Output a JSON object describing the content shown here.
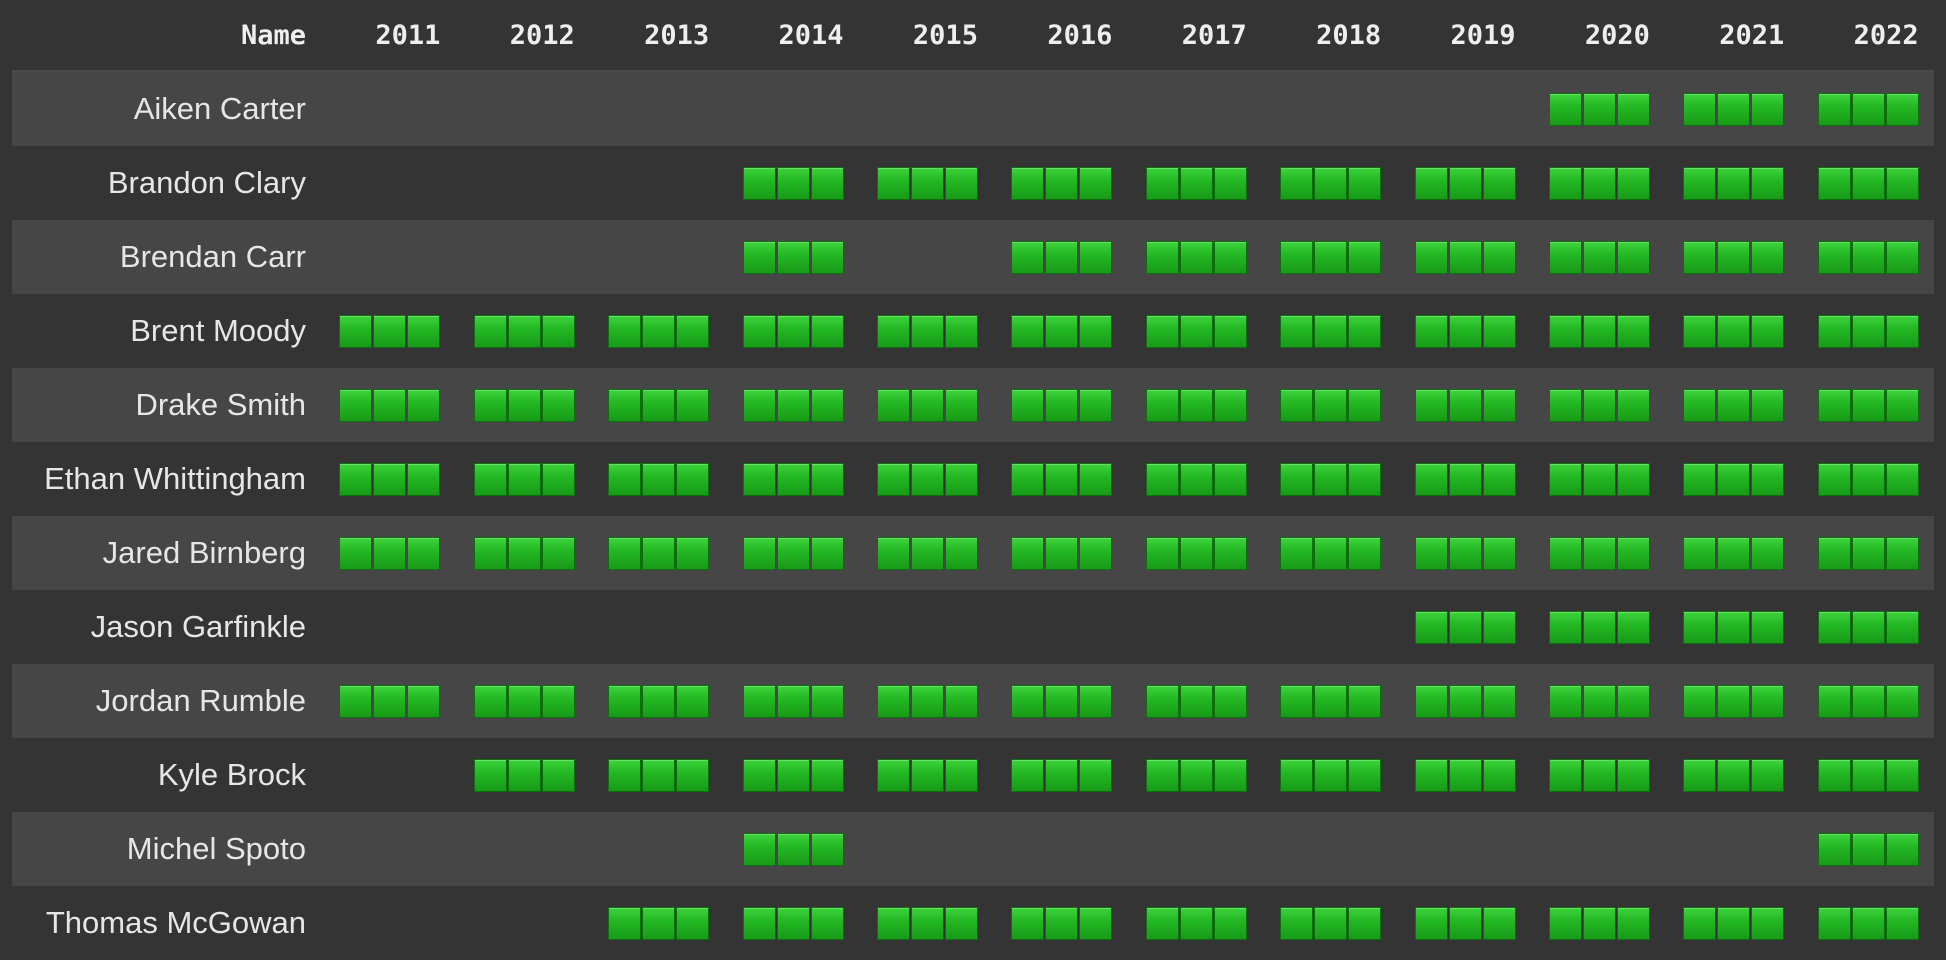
{
  "header": {
    "name_label": "Name",
    "years": [
      "2011",
      "2012",
      "2013",
      "2014",
      "2015",
      "2016",
      "2017",
      "2018",
      "2019",
      "2020",
      "2021",
      "2022"
    ]
  },
  "colors": {
    "background": "#343434",
    "row_alt": "#464646",
    "active_square": "#22b622"
  },
  "rows": [
    {
      "name": "Aiken Carter",
      "active": [
        0,
        0,
        0,
        0,
        0,
        0,
        0,
        0,
        0,
        1,
        1,
        1
      ]
    },
    {
      "name": "Brandon Clary",
      "active": [
        0,
        0,
        0,
        1,
        1,
        1,
        1,
        1,
        1,
        1,
        1,
        1
      ]
    },
    {
      "name": "Brendan Carr",
      "active": [
        0,
        0,
        0,
        1,
        0,
        1,
        1,
        1,
        1,
        1,
        1,
        1
      ]
    },
    {
      "name": "Brent Moody",
      "active": [
        1,
        1,
        1,
        1,
        1,
        1,
        1,
        1,
        1,
        1,
        1,
        1
      ]
    },
    {
      "name": "Drake Smith",
      "active": [
        1,
        1,
        1,
        1,
        1,
        1,
        1,
        1,
        1,
        1,
        1,
        1
      ]
    },
    {
      "name": "Ethan Whittingham",
      "active": [
        1,
        1,
        1,
        1,
        1,
        1,
        1,
        1,
        1,
        1,
        1,
        1
      ]
    },
    {
      "name": "Jared Birnberg",
      "active": [
        1,
        1,
        1,
        1,
        1,
        1,
        1,
        1,
        1,
        1,
        1,
        1
      ]
    },
    {
      "name": "Jason Garfinkle",
      "active": [
        0,
        0,
        0,
        0,
        0,
        0,
        0,
        0,
        1,
        1,
        1,
        1
      ]
    },
    {
      "name": "Jordan Rumble",
      "active": [
        1,
        1,
        1,
        1,
        1,
        1,
        1,
        1,
        1,
        1,
        1,
        1
      ]
    },
    {
      "name": "Kyle Brock",
      "active": [
        0,
        1,
        1,
        1,
        1,
        1,
        1,
        1,
        1,
        1,
        1,
        1
      ]
    },
    {
      "name": "Michel Spoto",
      "active": [
        0,
        0,
        0,
        1,
        0,
        0,
        0,
        0,
        0,
        0,
        0,
        1
      ]
    },
    {
      "name": "Thomas McGowan",
      "active": [
        0,
        0,
        1,
        1,
        1,
        1,
        1,
        1,
        1,
        1,
        1,
        1
      ]
    }
  ]
}
